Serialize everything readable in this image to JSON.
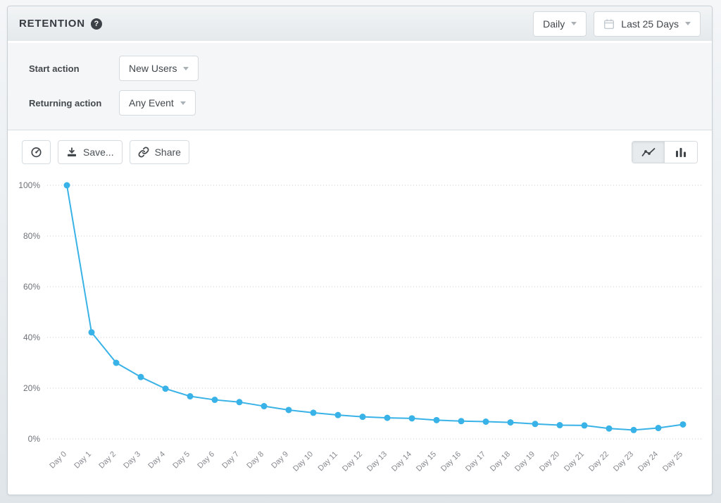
{
  "header": {
    "title": "RETENTION",
    "granularity": {
      "value": "Daily"
    },
    "date_range": {
      "value": "Last 25 Days"
    }
  },
  "filters": {
    "rows": [
      {
        "label": "Start action",
        "value": "New Users"
      },
      {
        "label": "Returning action",
        "value": "Any Event"
      }
    ]
  },
  "toolbar": {
    "save_label": "Save...",
    "share_label": "Share"
  },
  "icons": {
    "help_glyph": "?",
    "help": "question-mark-circle",
    "calendar": "calendar",
    "caret": "caret-down",
    "dashboard": "gauge",
    "save": "download-arrow",
    "share": "chain-link",
    "line_view": "line-chart",
    "bar_view": "bar-chart"
  },
  "colors": {
    "line": "#39b3e7",
    "grid": "#c5c8cb",
    "x_label": "#85898e",
    "y_label": "#6d7277"
  },
  "chart_data": {
    "type": "line",
    "title": "",
    "x": [
      "Day 0",
      "Day 1",
      "Day 2",
      "Day 3",
      "Day 4",
      "Day 5",
      "Day 6",
      "Day 7",
      "Day 8",
      "Day 9",
      "Day 10",
      "Day 11",
      "Day 12",
      "Day 13",
      "Day 14",
      "Day 15",
      "Day 16",
      "Day 17",
      "Day 18",
      "Day 19",
      "Day 20",
      "Day 21",
      "Day 22",
      "Day 23",
      "Day 24",
      "Day 25"
    ],
    "series": [
      {
        "name": "Retention",
        "values": [
          100,
          42,
          30,
          24.4,
          19.8,
          16.8,
          15.4,
          14.5,
          12.9,
          11.4,
          10.3,
          9.4,
          8.7,
          8.3,
          8.1,
          7.4,
          7.0,
          6.8,
          6.5,
          5.9,
          5.4,
          5.3,
          4.1,
          3.5,
          4.3,
          5.7
        ]
      }
    ],
    "xlabel": "",
    "ylabel": "",
    "ylim": [
      0,
      100
    ],
    "y_ticks": [
      0,
      20,
      40,
      60,
      80,
      100
    ],
    "y_tick_labels": [
      "0%",
      "20%",
      "40%",
      "60%",
      "80%",
      "100%"
    ],
    "grid": "horizontal-dotted",
    "legend": "none",
    "marker": "circle"
  }
}
